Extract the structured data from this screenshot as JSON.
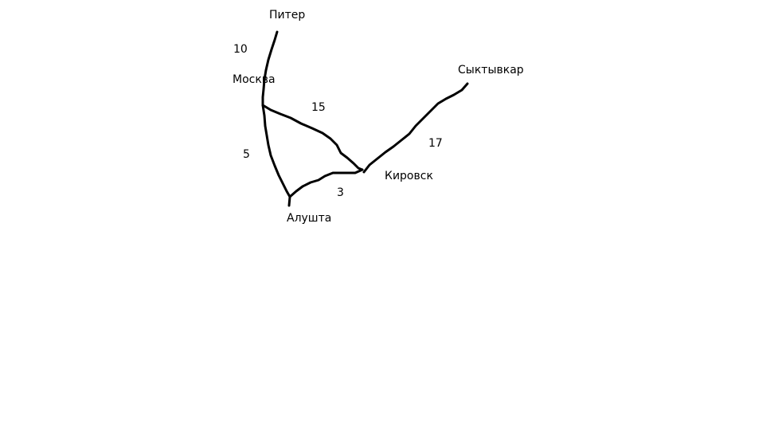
{
  "graph": {
    "nodes": [
      {
        "id": "piter",
        "label": "Питер"
      },
      {
        "id": "moskva",
        "label": "Москва"
      },
      {
        "id": "alushta",
        "label": "Алушта"
      },
      {
        "id": "kirovsk",
        "label": "Кировск"
      },
      {
        "id": "syktyvkar",
        "label": "Сыктывкар"
      }
    ],
    "edges": [
      {
        "id": "piter-moskva",
        "from": "Питер",
        "to": "Москва",
        "weight": "10"
      },
      {
        "id": "moskva-kirovsk",
        "from": "Москва",
        "to": "Кировск",
        "weight": "15"
      },
      {
        "id": "moskva-alushta",
        "from": "Москва",
        "to": "Алушта",
        "weight": "5"
      },
      {
        "id": "alushta-kirovsk",
        "from": "Алушта",
        "to": "Кировск",
        "weight": "3"
      },
      {
        "id": "kirovsk-syktyvkar",
        "from": "Кировск",
        "to": "Сыктывкар",
        "weight": "17"
      }
    ]
  },
  "colors": {
    "ink": "#000000",
    "background": "#ffffff"
  }
}
